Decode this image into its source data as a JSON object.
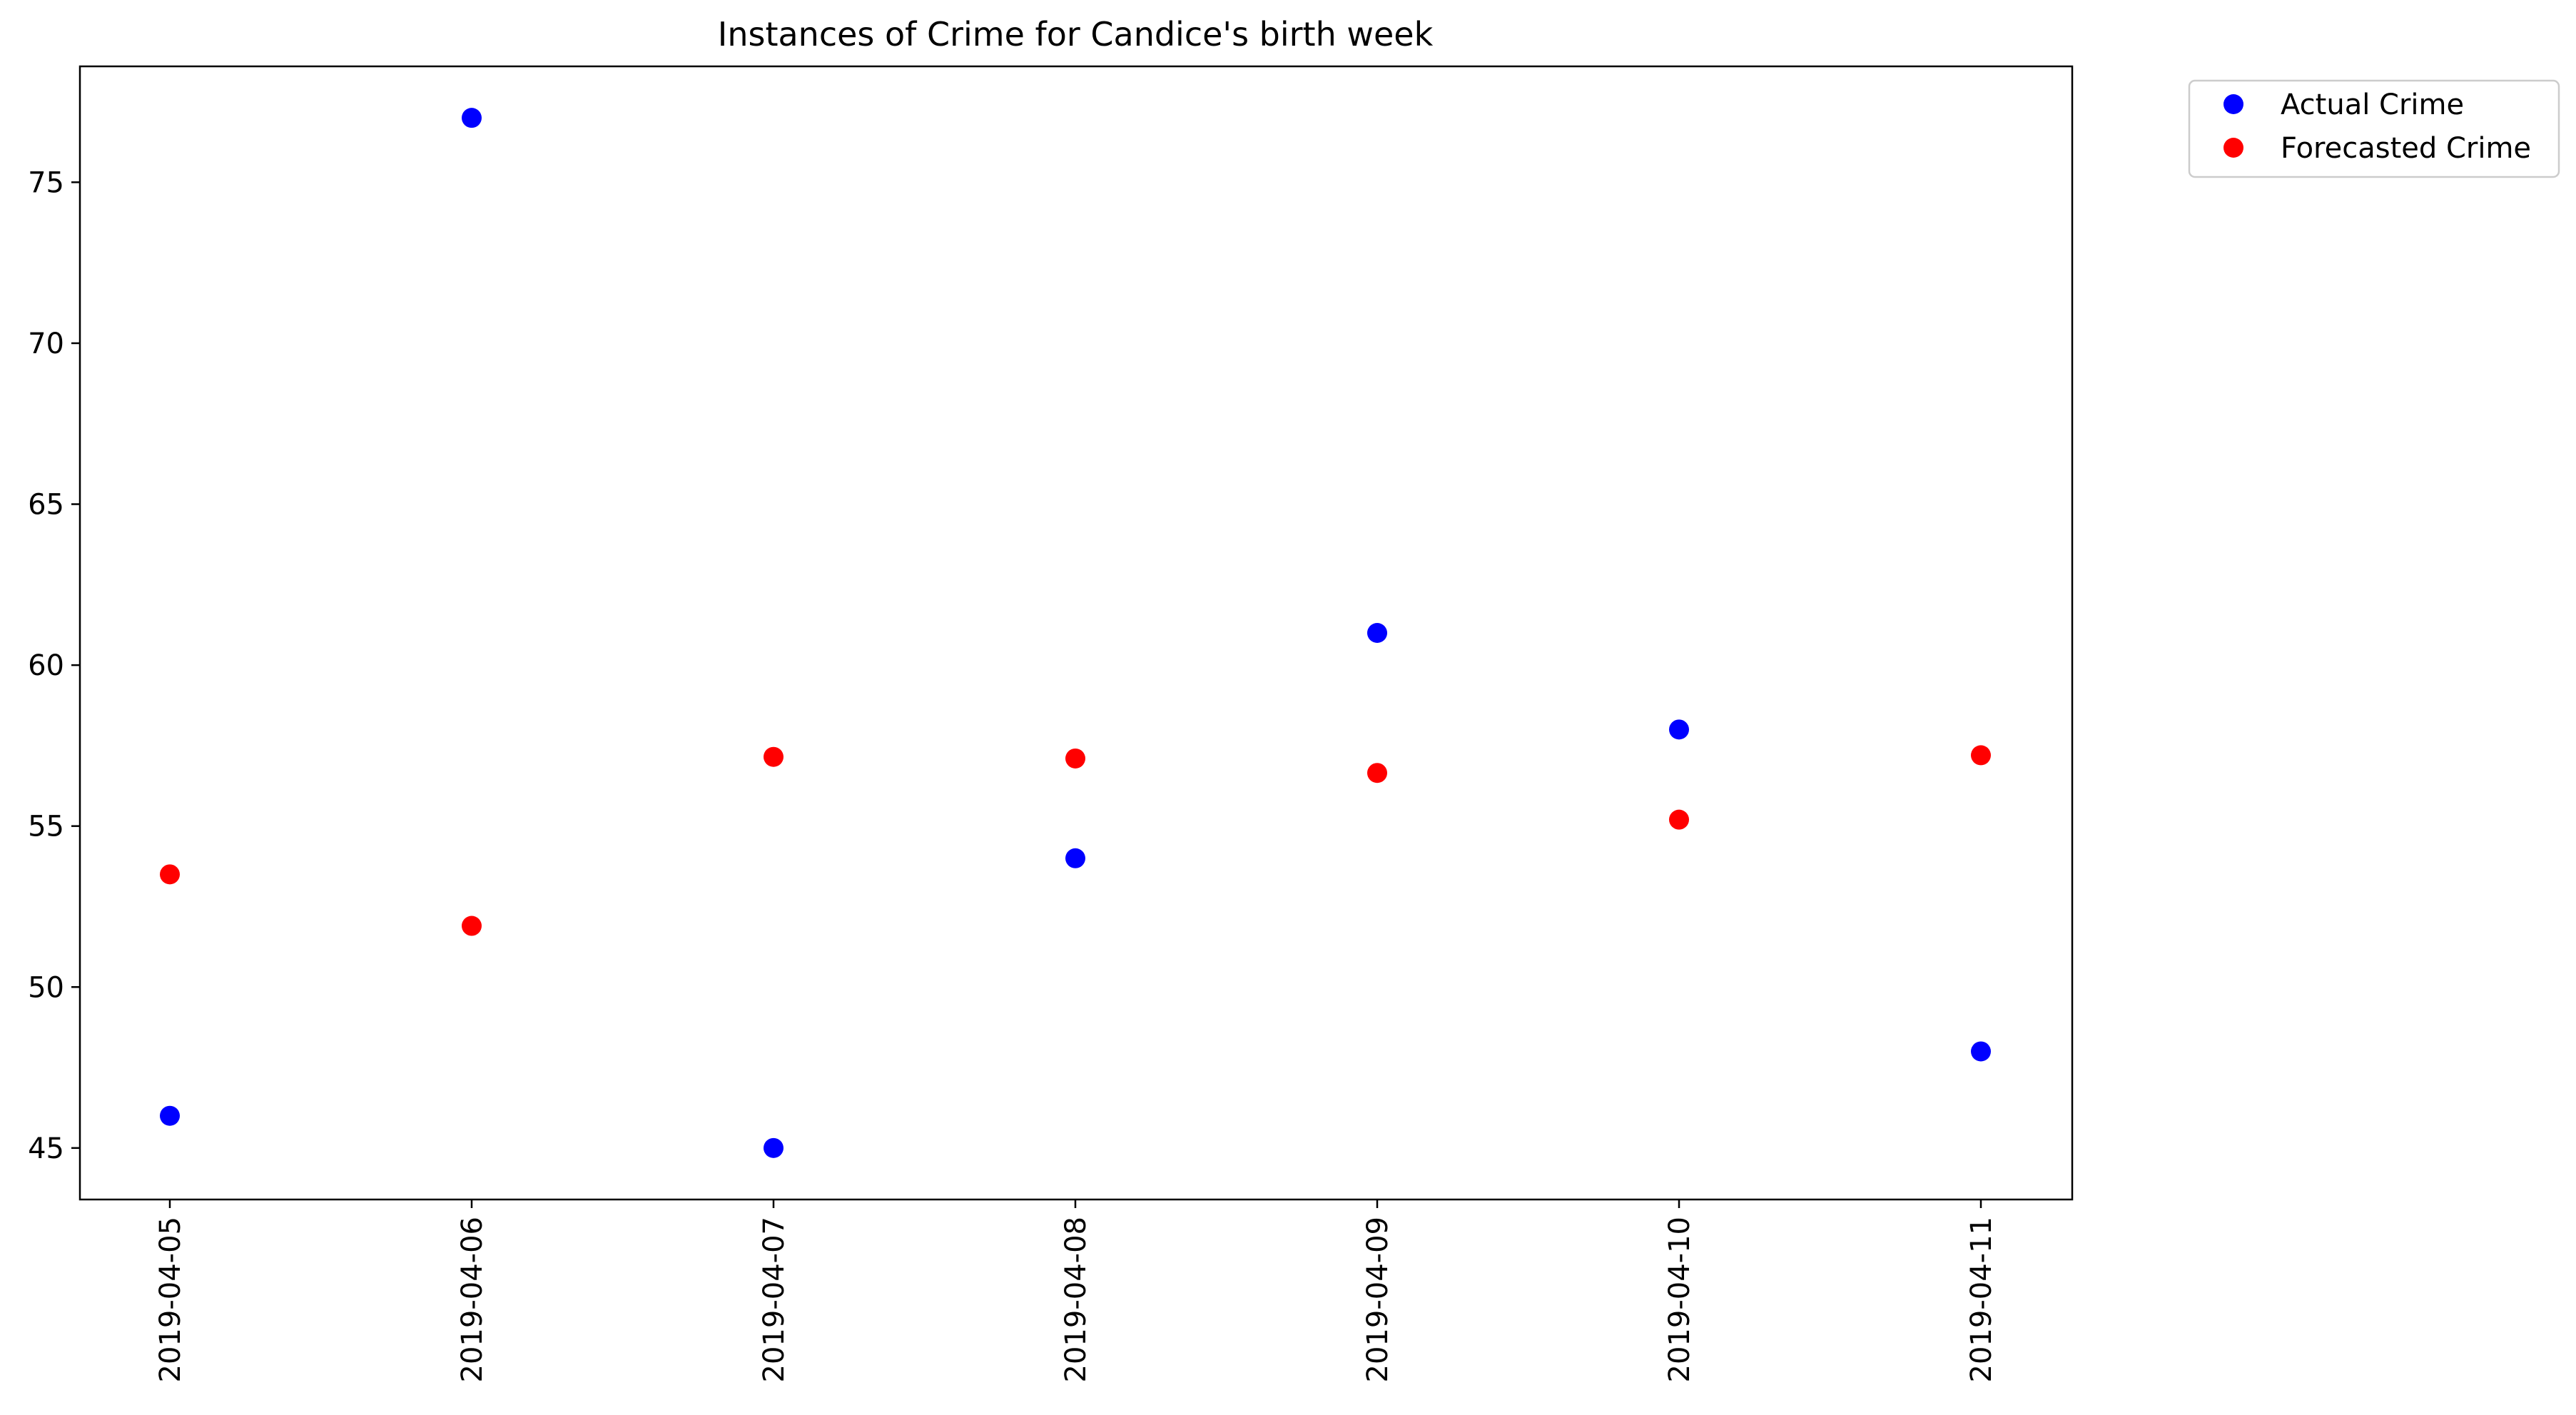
{
  "chart_data": {
    "type": "scatter",
    "title": "Instances of Crime for Candice's birth week",
    "xlabel": "",
    "ylabel": "",
    "x_categories": [
      "2019-04-05",
      "2019-04-06",
      "2019-04-07",
      "2019-04-08",
      "2019-04-09",
      "2019-04-10",
      "2019-04-11"
    ],
    "yticks": [
      45,
      50,
      55,
      60,
      65,
      70,
      75
    ],
    "ylim": [
      43.4,
      78.6
    ],
    "grid": false,
    "legend_position": "outside-top-right",
    "series": [
      {
        "name": "Actual Crime",
        "color": "#0000ff",
        "values": [
          46,
          77,
          45,
          54,
          61,
          58,
          48
        ]
      },
      {
        "name": "Forecasted Crime",
        "color": "#ff0000",
        "values": [
          53.5,
          51.9,
          57.15,
          57.1,
          56.65,
          55.2,
          57.2
        ]
      }
    ]
  }
}
